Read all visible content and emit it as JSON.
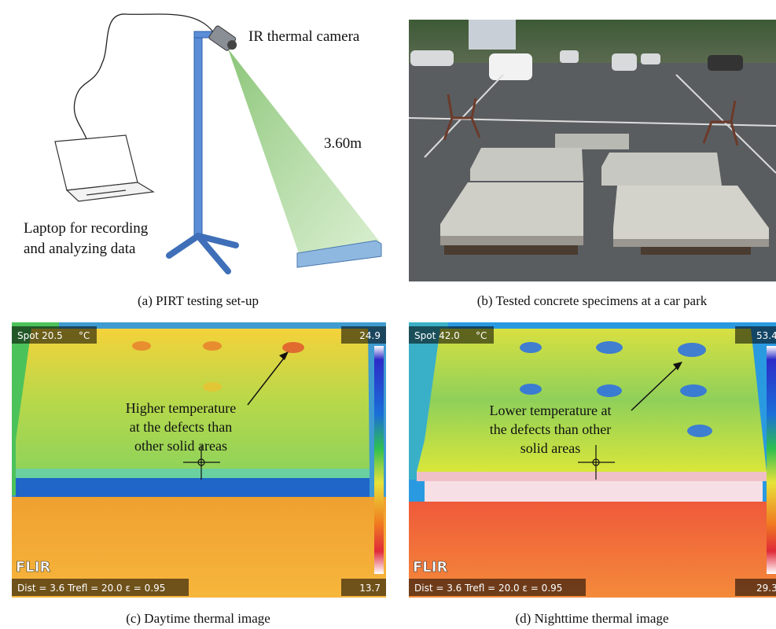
{
  "panels": [
    {
      "caption": "(a) PIRT testing set-up",
      "camera_label": "IR thermal camera",
      "distance_label": "3.60m",
      "laptop_label": [
        "Laptop for recording",
        "and analyzing data"
      ]
    },
    {
      "caption": "(b) Tested concrete specimens at a car park"
    },
    {
      "caption": "(c) Daytime thermal image",
      "spot": "Spot 20.5",
      "unit": "°C",
      "scale_max": "24.9",
      "scale_min": "13.7",
      "brand": "FLIR",
      "params": "Dist = 3.6  Trefl = 20.0  ε = 0.95",
      "annotation": [
        "Higher temperature",
        "at the defects than",
        "other solid areas"
      ]
    },
    {
      "caption": "(d) Nighttime thermal image",
      "spot": "Spot 42.0",
      "unit": "°C",
      "scale_max": "53.4",
      "scale_min": "29.3",
      "brand": "FLIR",
      "params": "Dist = 3.6  Trefl = 20.0  ε = 0.95",
      "annotation": [
        "Lower temperature at",
        "the defects than other",
        "solid areas"
      ]
    }
  ]
}
